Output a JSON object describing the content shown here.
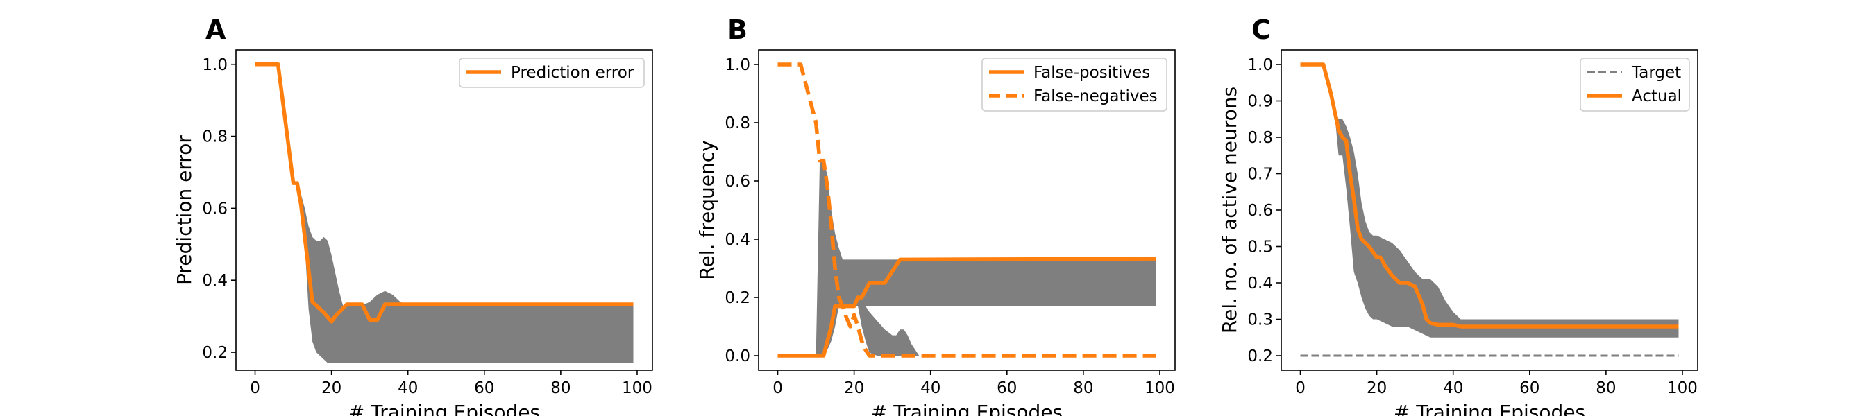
{
  "chart_data": [
    {
      "panel": "A",
      "type": "line",
      "xlabel": "# Training Episodes",
      "ylabel": "Prediction error",
      "xlim": [
        -5,
        104
      ],
      "ylim": [
        0.15,
        1.04
      ],
      "xticks": [
        0,
        20,
        40,
        60,
        80,
        100
      ],
      "yticks": [
        0.2,
        0.4,
        0.6,
        0.8,
        1.0
      ],
      "ytick_labels": [
        "0.2",
        "0.4",
        "0.6",
        "0.8",
        "1.0"
      ],
      "legend_position": "top-right",
      "grid": false,
      "bands": [
        {
          "color": "#7f7f7f",
          "x": [
            0,
            6,
            11,
            12,
            13,
            14,
            15,
            16,
            17,
            18,
            19,
            20,
            21,
            22,
            23,
            24,
            25,
            26,
            27,
            28,
            30,
            32,
            34,
            36,
            38,
            40,
            60,
            80,
            99
          ],
          "upper": [
            1.0,
            1.0,
            0.67,
            0.64,
            0.6,
            0.55,
            0.52,
            0.51,
            0.51,
            0.52,
            0.51,
            0.47,
            0.42,
            0.37,
            0.33,
            0.33,
            0.33,
            0.33,
            0.33,
            0.33,
            0.34,
            0.36,
            0.37,
            0.36,
            0.34,
            0.33,
            0.33,
            0.33,
            0.33
          ],
          "lower": [
            1.0,
            1.0,
            0.67,
            0.64,
            0.5,
            0.32,
            0.23,
            0.2,
            0.19,
            0.18,
            0.17,
            0.17,
            0.17,
            0.17,
            0.17,
            0.17,
            0.17,
            0.17,
            0.17,
            0.17,
            0.17,
            0.17,
            0.17,
            0.17,
            0.17,
            0.17,
            0.17,
            0.17,
            0.17
          ]
        }
      ],
      "series": [
        {
          "name": "Prediction error",
          "color": "#ff7f0e",
          "dash": "solid",
          "x": [
            0,
            6,
            10,
            11,
            12,
            14,
            15,
            18,
            20,
            21,
            24,
            28,
            30,
            32,
            34,
            99
          ],
          "y": [
            1.0,
            1.0,
            0.67,
            0.67,
            0.61,
            0.43,
            0.34,
            0.31,
            0.285,
            0.3,
            0.333,
            0.333,
            0.29,
            0.29,
            0.333,
            0.333
          ]
        }
      ]
    },
    {
      "panel": "B",
      "type": "line",
      "xlabel": "# Training Episodes",
      "ylabel": "Rel. frequency",
      "xlim": [
        -5,
        104
      ],
      "ylim": [
        -0.05,
        1.05
      ],
      "xticks": [
        0,
        20,
        40,
        60,
        80,
        100
      ],
      "yticks": [
        0.0,
        0.2,
        0.4,
        0.6,
        0.8,
        1.0
      ],
      "ytick_labels": [
        "0.0",
        "0.2",
        "0.4",
        "0.6",
        "0.8",
        "1.0"
      ],
      "legend_position": "top-right",
      "grid": false,
      "bands": [
        {
          "color": "#7f7f7f",
          "x": [
            0,
            10,
            11,
            12,
            13,
            14,
            15,
            16,
            17,
            18,
            19,
            20,
            21,
            22,
            23,
            24,
            26,
            28,
            30,
            32,
            33,
            34,
            35,
            36,
            38,
            40,
            60,
            80,
            99
          ],
          "upper": [
            0.0,
            0.0,
            0.67,
            0.67,
            0.62,
            0.5,
            0.42,
            0.37,
            0.33,
            0.33,
            0.33,
            0.33,
            0.33,
            0.33,
            0.33,
            0.33,
            0.33,
            0.33,
            0.33,
            0.33,
            0.33,
            0.33,
            0.33,
            0.33,
            0.33,
            0.33,
            0.33,
            0.33,
            0.33
          ],
          "lower": [
            0.0,
            0.0,
            0.0,
            0.0,
            0.02,
            0.05,
            0.1,
            0.17,
            0.17,
            0.17,
            0.17,
            0.17,
            0.17,
            0.17,
            0.17,
            0.17,
            0.17,
            0.17,
            0.17,
            0.17,
            0.17,
            0.17,
            0.17,
            0.17,
            0.17,
            0.17,
            0.17,
            0.17,
            0.17
          ]
        },
        {
          "color": "#7f7f7f",
          "x": [
            21,
            22,
            23,
            24,
            26,
            28,
            30,
            31,
            32,
            33,
            34,
            35,
            36,
            37
          ],
          "upper": [
            0.17,
            0.17,
            0.17,
            0.15,
            0.12,
            0.09,
            0.07,
            0.07,
            0.09,
            0.09,
            0.07,
            0.04,
            0.02,
            0.0
          ],
          "lower": [
            0.17,
            0.1,
            0.05,
            0.01,
            0.0,
            0.0,
            0.0,
            0.0,
            0.0,
            0.0,
            0.0,
            0.0,
            0.0,
            0.0
          ]
        }
      ],
      "series": [
        {
          "name": "False-positives",
          "color": "#ff7f0e",
          "dash": "solid",
          "x": [
            0,
            11,
            12,
            14,
            15,
            16,
            18,
            19,
            20,
            21,
            22,
            24,
            25,
            28,
            30,
            32,
            33,
            99
          ],
          "y": [
            0.0,
            0.0,
            0.0,
            0.1,
            0.17,
            0.17,
            0.17,
            0.17,
            0.17,
            0.2,
            0.2,
            0.25,
            0.25,
            0.25,
            0.29,
            0.33,
            0.33,
            0.333
          ]
        },
        {
          "name": "False-negatives",
          "color": "#ff7f0e",
          "dash": "dashed",
          "x": [
            0,
            6,
            8,
            10,
            11,
            12,
            13,
            14,
            15,
            16,
            17,
            18,
            19,
            20,
            21,
            22,
            23,
            24,
            26,
            99
          ],
          "y": [
            1.0,
            1.0,
            0.9,
            0.8,
            0.67,
            0.67,
            0.58,
            0.45,
            0.3,
            0.2,
            0.17,
            0.13,
            0.1,
            0.14,
            0.1,
            0.05,
            0.02,
            0.0,
            0.0,
            0.0
          ]
        }
      ]
    },
    {
      "panel": "C",
      "type": "line",
      "xlabel": "# Training Episodes",
      "ylabel": "Rel. no. of active neurons",
      "xlim": [
        -5,
        104
      ],
      "ylim": [
        0.16,
        1.04
      ],
      "xticks": [
        0,
        20,
        40,
        60,
        80,
        100
      ],
      "yticks": [
        0.2,
        0.3,
        0.4,
        0.5,
        0.6,
        0.7,
        0.8,
        0.9,
        1.0
      ],
      "ytick_labels": [
        "0.2",
        "0.3",
        "0.4",
        "0.5",
        "0.6",
        "0.7",
        "0.8",
        "0.9",
        "1.0"
      ],
      "legend_position": "top-right",
      "grid": false,
      "bands": [
        {
          "color": "#7f7f7f",
          "x": [
            0,
            6,
            9,
            10,
            11,
            12,
            13,
            14,
            15,
            16,
            17,
            18,
            19,
            20,
            22,
            24,
            26,
            28,
            30,
            32,
            34,
            36,
            38,
            40,
            42,
            44,
            60,
            80,
            99
          ],
          "upper": [
            1.0,
            1.0,
            0.88,
            0.85,
            0.85,
            0.83,
            0.8,
            0.76,
            0.7,
            0.62,
            0.57,
            0.54,
            0.53,
            0.53,
            0.52,
            0.51,
            0.49,
            0.46,
            0.43,
            0.41,
            0.41,
            0.39,
            0.35,
            0.32,
            0.3,
            0.3,
            0.3,
            0.3,
            0.3
          ],
          "lower": [
            1.0,
            1.0,
            0.86,
            0.75,
            0.75,
            0.66,
            0.55,
            0.43,
            0.4,
            0.36,
            0.33,
            0.31,
            0.3,
            0.3,
            0.29,
            0.28,
            0.28,
            0.28,
            0.27,
            0.26,
            0.25,
            0.25,
            0.25,
            0.25,
            0.25,
            0.25,
            0.25,
            0.25,
            0.25
          ]
        }
      ],
      "series": [
        {
          "name": "Target",
          "color": "#7f7f7f",
          "dash": "dashed",
          "x": [
            0,
            99
          ],
          "y": [
            0.2,
            0.2
          ]
        },
        {
          "name": "Actual",
          "color": "#ff7f0e",
          "dash": "solid",
          "x": [
            0,
            6,
            8,
            10,
            11,
            12,
            13,
            14,
            15,
            16,
            18,
            20,
            21,
            22,
            24,
            26,
            28,
            30,
            32,
            33,
            34,
            36,
            40,
            42,
            60,
            80,
            99
          ],
          "y": [
            1.0,
            1.0,
            0.92,
            0.82,
            0.8,
            0.79,
            0.7,
            0.63,
            0.55,
            0.52,
            0.5,
            0.47,
            0.47,
            0.45,
            0.42,
            0.4,
            0.4,
            0.39,
            0.34,
            0.3,
            0.29,
            0.285,
            0.285,
            0.28,
            0.28,
            0.28,
            0.28
          ]
        }
      ]
    }
  ]
}
